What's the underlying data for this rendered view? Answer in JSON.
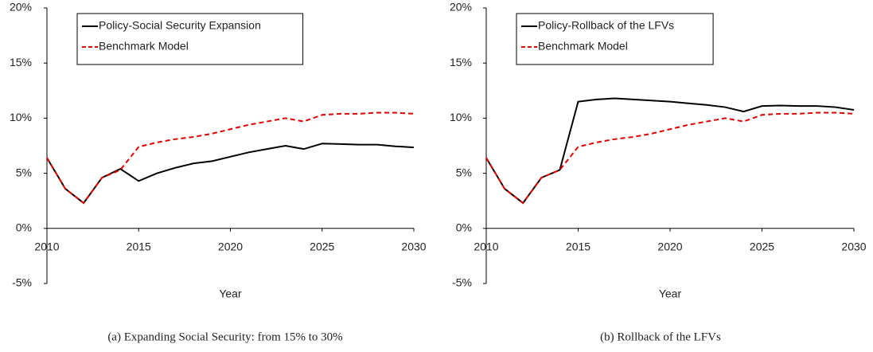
{
  "chart_data": [
    {
      "type": "line",
      "caption": "(a) Expanding Social Security: from 15% to 30%",
      "xlabel": "Year",
      "x": [
        2010,
        2011,
        2012,
        2013,
        2014,
        2015,
        2016,
        2017,
        2018,
        2019,
        2020,
        2021,
        2022,
        2023,
        2024,
        2025,
        2026,
        2027,
        2028,
        2029,
        2030
      ],
      "series": [
        {
          "name": "Policy-Social Security Expansion",
          "color": "#000000",
          "dash": false,
          "values": [
            6.4,
            3.6,
            2.3,
            4.6,
            5.4,
            4.3,
            5.0,
            5.5,
            5.9,
            6.1,
            6.5,
            6.9,
            7.2,
            7.5,
            7.2,
            7.7,
            7.65,
            7.6,
            7.6,
            7.45,
            7.35
          ]
        },
        {
          "name": "Benchmark Model",
          "color": "#e00000",
          "dash": true,
          "values": [
            6.4,
            3.6,
            2.3,
            4.6,
            5.3,
            7.4,
            7.8,
            8.1,
            8.3,
            8.6,
            9.0,
            9.4,
            9.7,
            10.0,
            9.7,
            10.3,
            10.4,
            10.4,
            10.5,
            10.5,
            10.4
          ]
        }
      ],
      "xlim": [
        2010,
        2030
      ],
      "xticks": [
        2010,
        2015,
        2020,
        2025,
        2030
      ],
      "ylim": [
        -5,
        20
      ],
      "yticks": [
        {
          "value": -5,
          "label": "-5%"
        },
        {
          "value": 0,
          "label": "0%"
        },
        {
          "value": 5,
          "label": "5%"
        },
        {
          "value": 10,
          "label": "10%"
        },
        {
          "value": 15,
          "label": "15%"
        },
        {
          "value": 20,
          "label": "20%"
        }
      ],
      "legend": "upper left",
      "grid": false
    },
    {
      "type": "line",
      "caption": "(b) Rollback of the LFVs",
      "xlabel": "Year",
      "x": [
        2010,
        2011,
        2012,
        2013,
        2014,
        2015,
        2016,
        2017,
        2018,
        2019,
        2020,
        2021,
        2022,
        2023,
        2024,
        2025,
        2026,
        2027,
        2028,
        2029,
        2030
      ],
      "series": [
        {
          "name": "Policy-Rollback of the LFVs",
          "color": "#000000",
          "dash": false,
          "values": [
            6.4,
            3.6,
            2.3,
            4.6,
            5.3,
            11.5,
            11.7,
            11.8,
            11.7,
            11.6,
            11.5,
            11.35,
            11.2,
            11.0,
            10.6,
            11.1,
            11.15,
            11.1,
            11.1,
            11.0,
            10.75
          ]
        },
        {
          "name": "Benchmark Model",
          "color": "#e00000",
          "dash": true,
          "values": [
            6.4,
            3.6,
            2.3,
            4.6,
            5.3,
            7.4,
            7.8,
            8.1,
            8.3,
            8.6,
            9.0,
            9.4,
            9.7,
            10.0,
            9.7,
            10.3,
            10.4,
            10.4,
            10.5,
            10.5,
            10.4
          ]
        }
      ],
      "xlim": [
        2010,
        2030
      ],
      "xticks": [
        2010,
        2015,
        2020,
        2025,
        2030
      ],
      "ylim": [
        -5,
        20
      ],
      "yticks": [
        {
          "value": -5,
          "label": "-5%"
        },
        {
          "value": 0,
          "label": "0%"
        },
        {
          "value": 5,
          "label": "5%"
        },
        {
          "value": 10,
          "label": "10%"
        },
        {
          "value": 15,
          "label": "15%"
        },
        {
          "value": 20,
          "label": "20%"
        }
      ],
      "legend": "upper left",
      "grid": false
    }
  ]
}
